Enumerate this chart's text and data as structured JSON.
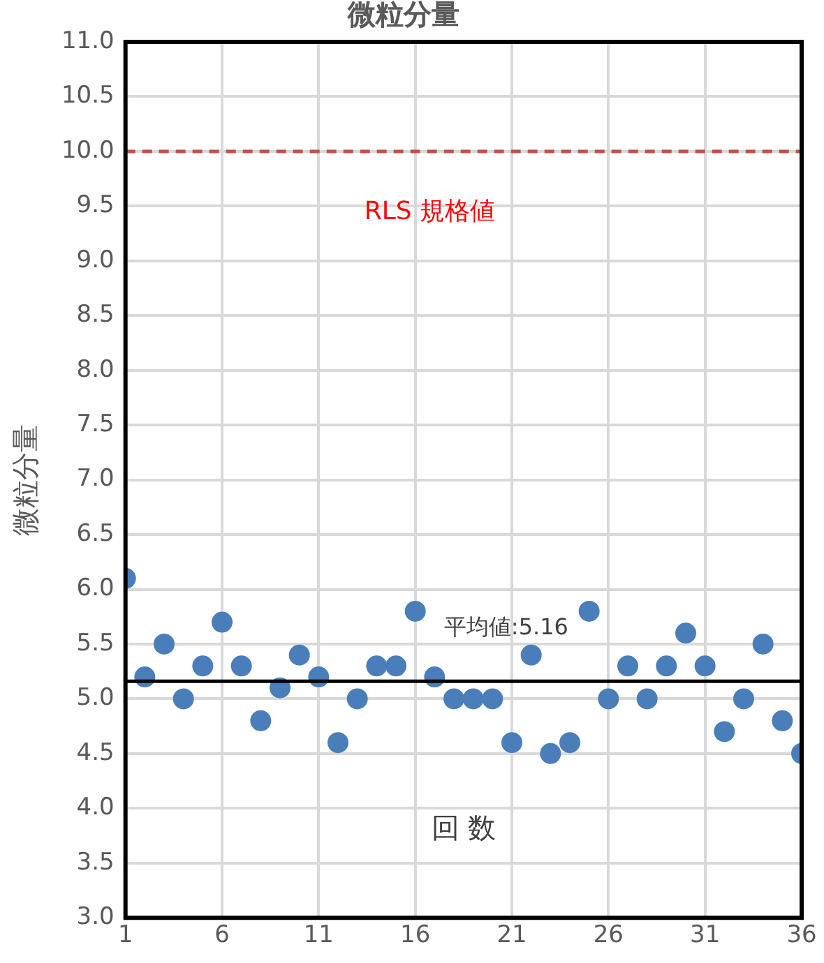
{
  "chart_data": {
    "type": "scatter",
    "title": "微粒分量",
    "xlabel": "回 数",
    "ylabel": "微粒分量",
    "x": [
      1,
      2,
      3,
      4,
      5,
      6,
      7,
      8,
      9,
      10,
      11,
      12,
      13,
      14,
      15,
      16,
      17,
      18,
      19,
      20,
      21,
      22,
      23,
      24,
      25,
      26,
      27,
      28,
      29,
      30,
      31,
      32,
      33,
      34,
      35,
      36
    ],
    "series": [
      {
        "color": "#4a7ebb",
        "values": [
          6.1,
          5.2,
          5.5,
          5.0,
          5.3,
          5.7,
          5.3,
          4.8,
          5.1,
          5.4,
          5.2,
          4.6,
          5.0,
          5.3,
          5.3,
          5.8,
          5.2,
          5.0,
          5.0,
          5.0,
          4.6,
          5.4,
          4.5,
          4.6,
          5.8,
          5.0,
          5.3,
          5.0,
          5.3,
          5.6,
          5.3,
          4.7,
          5.0,
          5.5,
          4.8,
          4.5
        ]
      }
    ],
    "xlim": [
      1,
      36
    ],
    "xticks": [
      1,
      6,
      11,
      16,
      21,
      26,
      31,
      36
    ],
    "ylim": [
      3.0,
      11.0
    ],
    "yticks": [
      {
        "value": 3.0,
        "label": "3.0"
      },
      {
        "value": 3.5,
        "label": "3.5"
      },
      {
        "value": 4.0,
        "label": "4.0"
      },
      {
        "value": 4.5,
        "label": "4.5"
      },
      {
        "value": 5.0,
        "label": "5.0"
      },
      {
        "value": 5.5,
        "label": "5.5"
      },
      {
        "value": 6.0,
        "label": "6.0"
      },
      {
        "value": 6.5,
        "label": "6.5"
      },
      {
        "value": 7.0,
        "label": "7.0"
      },
      {
        "value": 7.5,
        "label": "7.5"
      },
      {
        "value": 8.0,
        "label": "8.0"
      },
      {
        "value": 8.5,
        "label": "8.5"
      },
      {
        "value": 9.0,
        "label": "9.0"
      },
      {
        "value": 9.5,
        "label": "9.5"
      },
      {
        "value": 10.0,
        "label": "10.0"
      },
      {
        "value": 10.5,
        "label": "10.5"
      },
      {
        "value": 11.0,
        "label": "11.0"
      }
    ],
    "ref_lines": [
      {
        "axis": "y",
        "value": 10.0,
        "label": "RLS 規格値",
        "color": "#c0504d",
        "line_style": "dashed"
      },
      {
        "axis": "y",
        "value": 5.16,
        "label": "平均値:5.16",
        "color": "#000000",
        "line_style": "solid"
      }
    ],
    "grid": true,
    "legend": false,
    "marker": "circle"
  }
}
